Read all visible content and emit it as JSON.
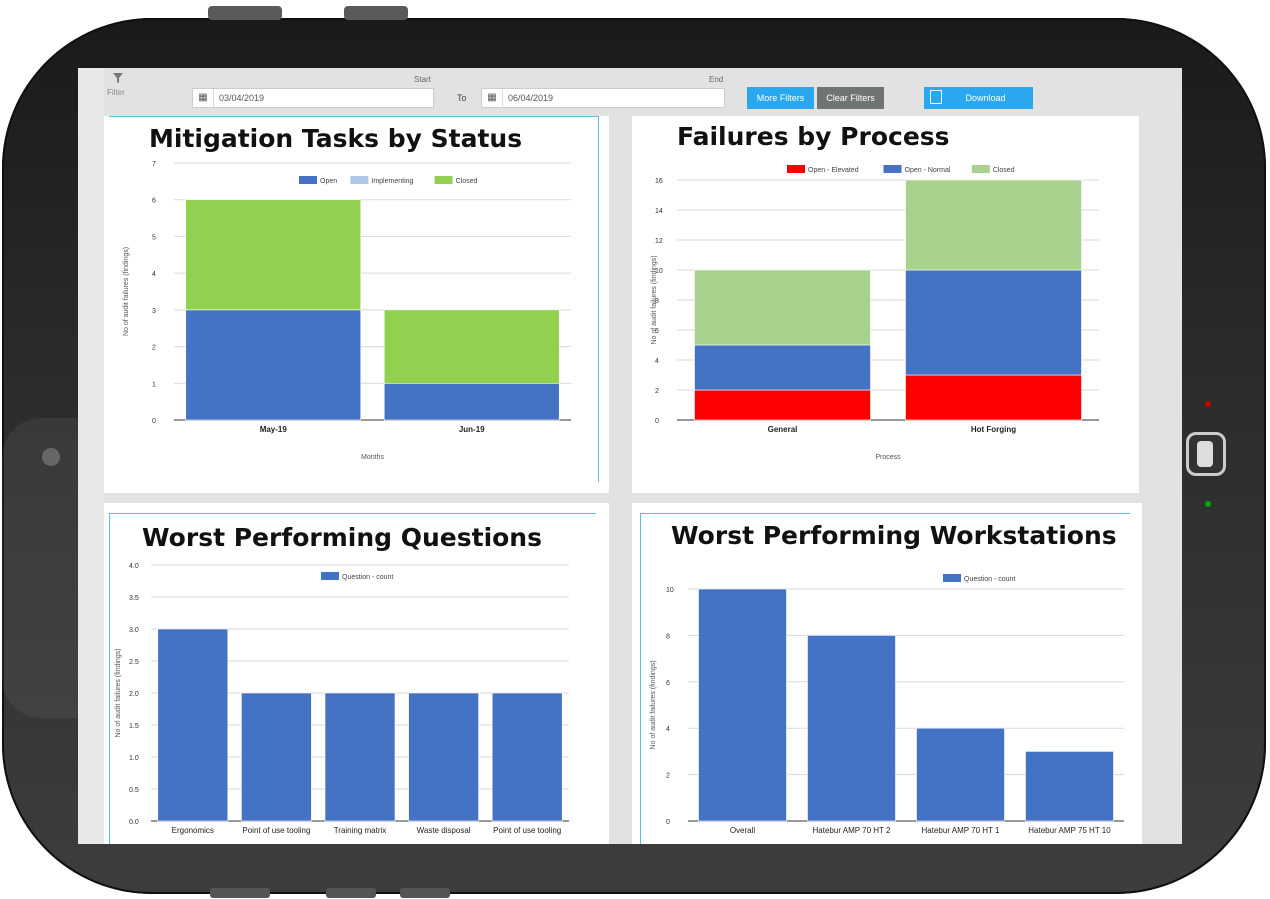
{
  "colors": {
    "blue": "#4472c4",
    "light_blue": "#aec7e8",
    "green": "#92d050",
    "light_green": "#a9d18e",
    "red": "#ff0000",
    "accent": "#2aa8ef",
    "gray_button": "#6f7475"
  },
  "filterbar": {
    "filter_icon": "filter-icon",
    "filter_label": "Filter",
    "start_label": "Start",
    "end_label": "End",
    "start_date": "03/04/2019",
    "end_date": "06/04/2019",
    "to_label": "To",
    "more_filters": "More Filters",
    "clear_filters": "Clear Filters",
    "download": "Download"
  },
  "panels": {
    "mitigation": {
      "title": "Mitigation Tasks by Status"
    },
    "failures": {
      "title": "Failures by Process"
    },
    "questions": {
      "title": "Worst Performing Questions"
    },
    "workstations": {
      "title": "Worst Performing Workstations"
    }
  },
  "chart_data": [
    {
      "id": "mitigation",
      "type": "bar",
      "stacked": true,
      "title": "Mitigation Tasks by Status",
      "categories": [
        "May-19",
        "Jun-19"
      ],
      "series": [
        {
          "name": "Open",
          "color": "#4472c4",
          "values": [
            3,
            1
          ]
        },
        {
          "name": "Implementing",
          "color": "#aec7e8",
          "values": [
            0,
            0
          ]
        },
        {
          "name": "Closed",
          "color": "#92d050",
          "values": [
            3,
            2
          ]
        }
      ],
      "xlabel": "Months",
      "ylabel": "No of audit failures (findings)",
      "ylim": [
        0,
        7
      ],
      "yticks": [
        0,
        1,
        2,
        3,
        4,
        5,
        6,
        7
      ],
      "ytick_labels": [
        "0",
        "1",
        "2",
        "3",
        "4",
        "5",
        "6",
        "7"
      ],
      "legend": "top"
    },
    {
      "id": "failures",
      "type": "bar",
      "stacked": true,
      "title": "Failures by Process",
      "categories": [
        "General",
        "Hot Forging"
      ],
      "series": [
        {
          "name": "Open - Elevated",
          "color": "#ff0000",
          "values": [
            2,
            3
          ]
        },
        {
          "name": "Open - Normal",
          "color": "#4472c4",
          "values": [
            3,
            7
          ]
        },
        {
          "name": "Closed",
          "color": "#a9d18e",
          "values": [
            5,
            6
          ]
        }
      ],
      "xlabel": "Process",
      "ylabel": "No of audit failures (findings)",
      "ylim": [
        0,
        16
      ],
      "yticks": [
        0,
        2,
        4,
        6,
        8,
        10,
        12,
        14,
        16
      ],
      "ytick_labels": [
        "0",
        "2",
        "4",
        "6",
        "8",
        "10",
        "12",
        "14",
        "16"
      ],
      "legend": "top"
    },
    {
      "id": "questions",
      "type": "bar",
      "title": "Worst Performing Questions",
      "categories": [
        "Ergonomics",
        "Point of use tooling",
        "Training matrix",
        "Waste disposal",
        "Point of use tooling"
      ],
      "series": [
        {
          "name": "Question - count",
          "color": "#4472c4",
          "values": [
            3,
            2,
            2,
            2,
            2
          ]
        }
      ],
      "xlabel": "",
      "ylabel": "No of audit failures (findings)",
      "ylim": [
        0,
        4
      ],
      "yticks": [
        0,
        0.5,
        1,
        1.5,
        2,
        2.5,
        3,
        3.5,
        4
      ],
      "ytick_labels": [
        "0.0",
        "0.5",
        "1.0",
        "1.5",
        "2.0",
        "2.5",
        "3.0",
        "3.5",
        "4.0"
      ],
      "legend": "top"
    },
    {
      "id": "workstations",
      "type": "bar",
      "title": "Worst Performing Workstations",
      "categories": [
        "Overall",
        "Hatebur AMP 70 HT 2",
        "Hatebur AMP 70 HT 1",
        "Hatebur AMP 75 HT 10"
      ],
      "series": [
        {
          "name": "Question - count",
          "color": "#4472c4",
          "values": [
            10,
            8,
            4,
            3
          ]
        }
      ],
      "xlabel": "",
      "ylabel": "No of audit failures (findings)",
      "ylim": [
        0,
        10
      ],
      "yticks": [
        0,
        2,
        4,
        6,
        8,
        10
      ],
      "ytick_labels": [
        "0",
        "2",
        "4",
        "6",
        "8",
        "10"
      ],
      "legend": "top"
    }
  ]
}
